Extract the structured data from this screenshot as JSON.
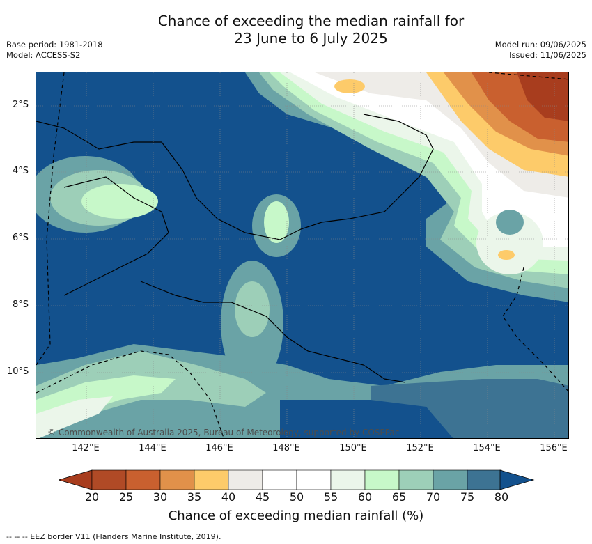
{
  "title": {
    "line1": "Chance of exceeding the median rainfall for",
    "line2": "23 June to 6 July 2025"
  },
  "meta": {
    "base_period": "Base period: 1981-2018",
    "model": "Model: ACCESS-S2",
    "model_run": "Model run: 09/06/2025",
    "issued": "Issued: 11/06/2025"
  },
  "map": {
    "lat_labels": [
      "2°S",
      "4°S",
      "6°S",
      "8°S",
      "10°S"
    ],
    "lon_labels": [
      "142°E",
      "144°E",
      "146°E",
      "148°E",
      "150°E",
      "152°E",
      "154°E",
      "156°E"
    ],
    "credit": "© Commonwealth of Australia 2025, Bureau of Meteorology, supported by COSPPac"
  },
  "colorbar": {
    "ticks": [
      "20",
      "25",
      "30",
      "35",
      "40",
      "45",
      "50",
      "55",
      "60",
      "65",
      "70",
      "75",
      "80"
    ],
    "colors": [
      "#a83d1e",
      "#b04a26",
      "#c9602f",
      "#e1914a",
      "#fdcb6a",
      "#eeece8",
      "#ffffff",
      "#ffffff",
      "#ebf6ea",
      "#c7f8c9",
      "#9dcfb8",
      "#6aa3a6",
      "#3d7393",
      "#13518d"
    ],
    "label": "Chance of exceeding median rainfall (%)"
  },
  "footer": {
    "legend": "--  --  -- EEZ border V11 (Flanders Marine Institute, 2019)."
  }
}
